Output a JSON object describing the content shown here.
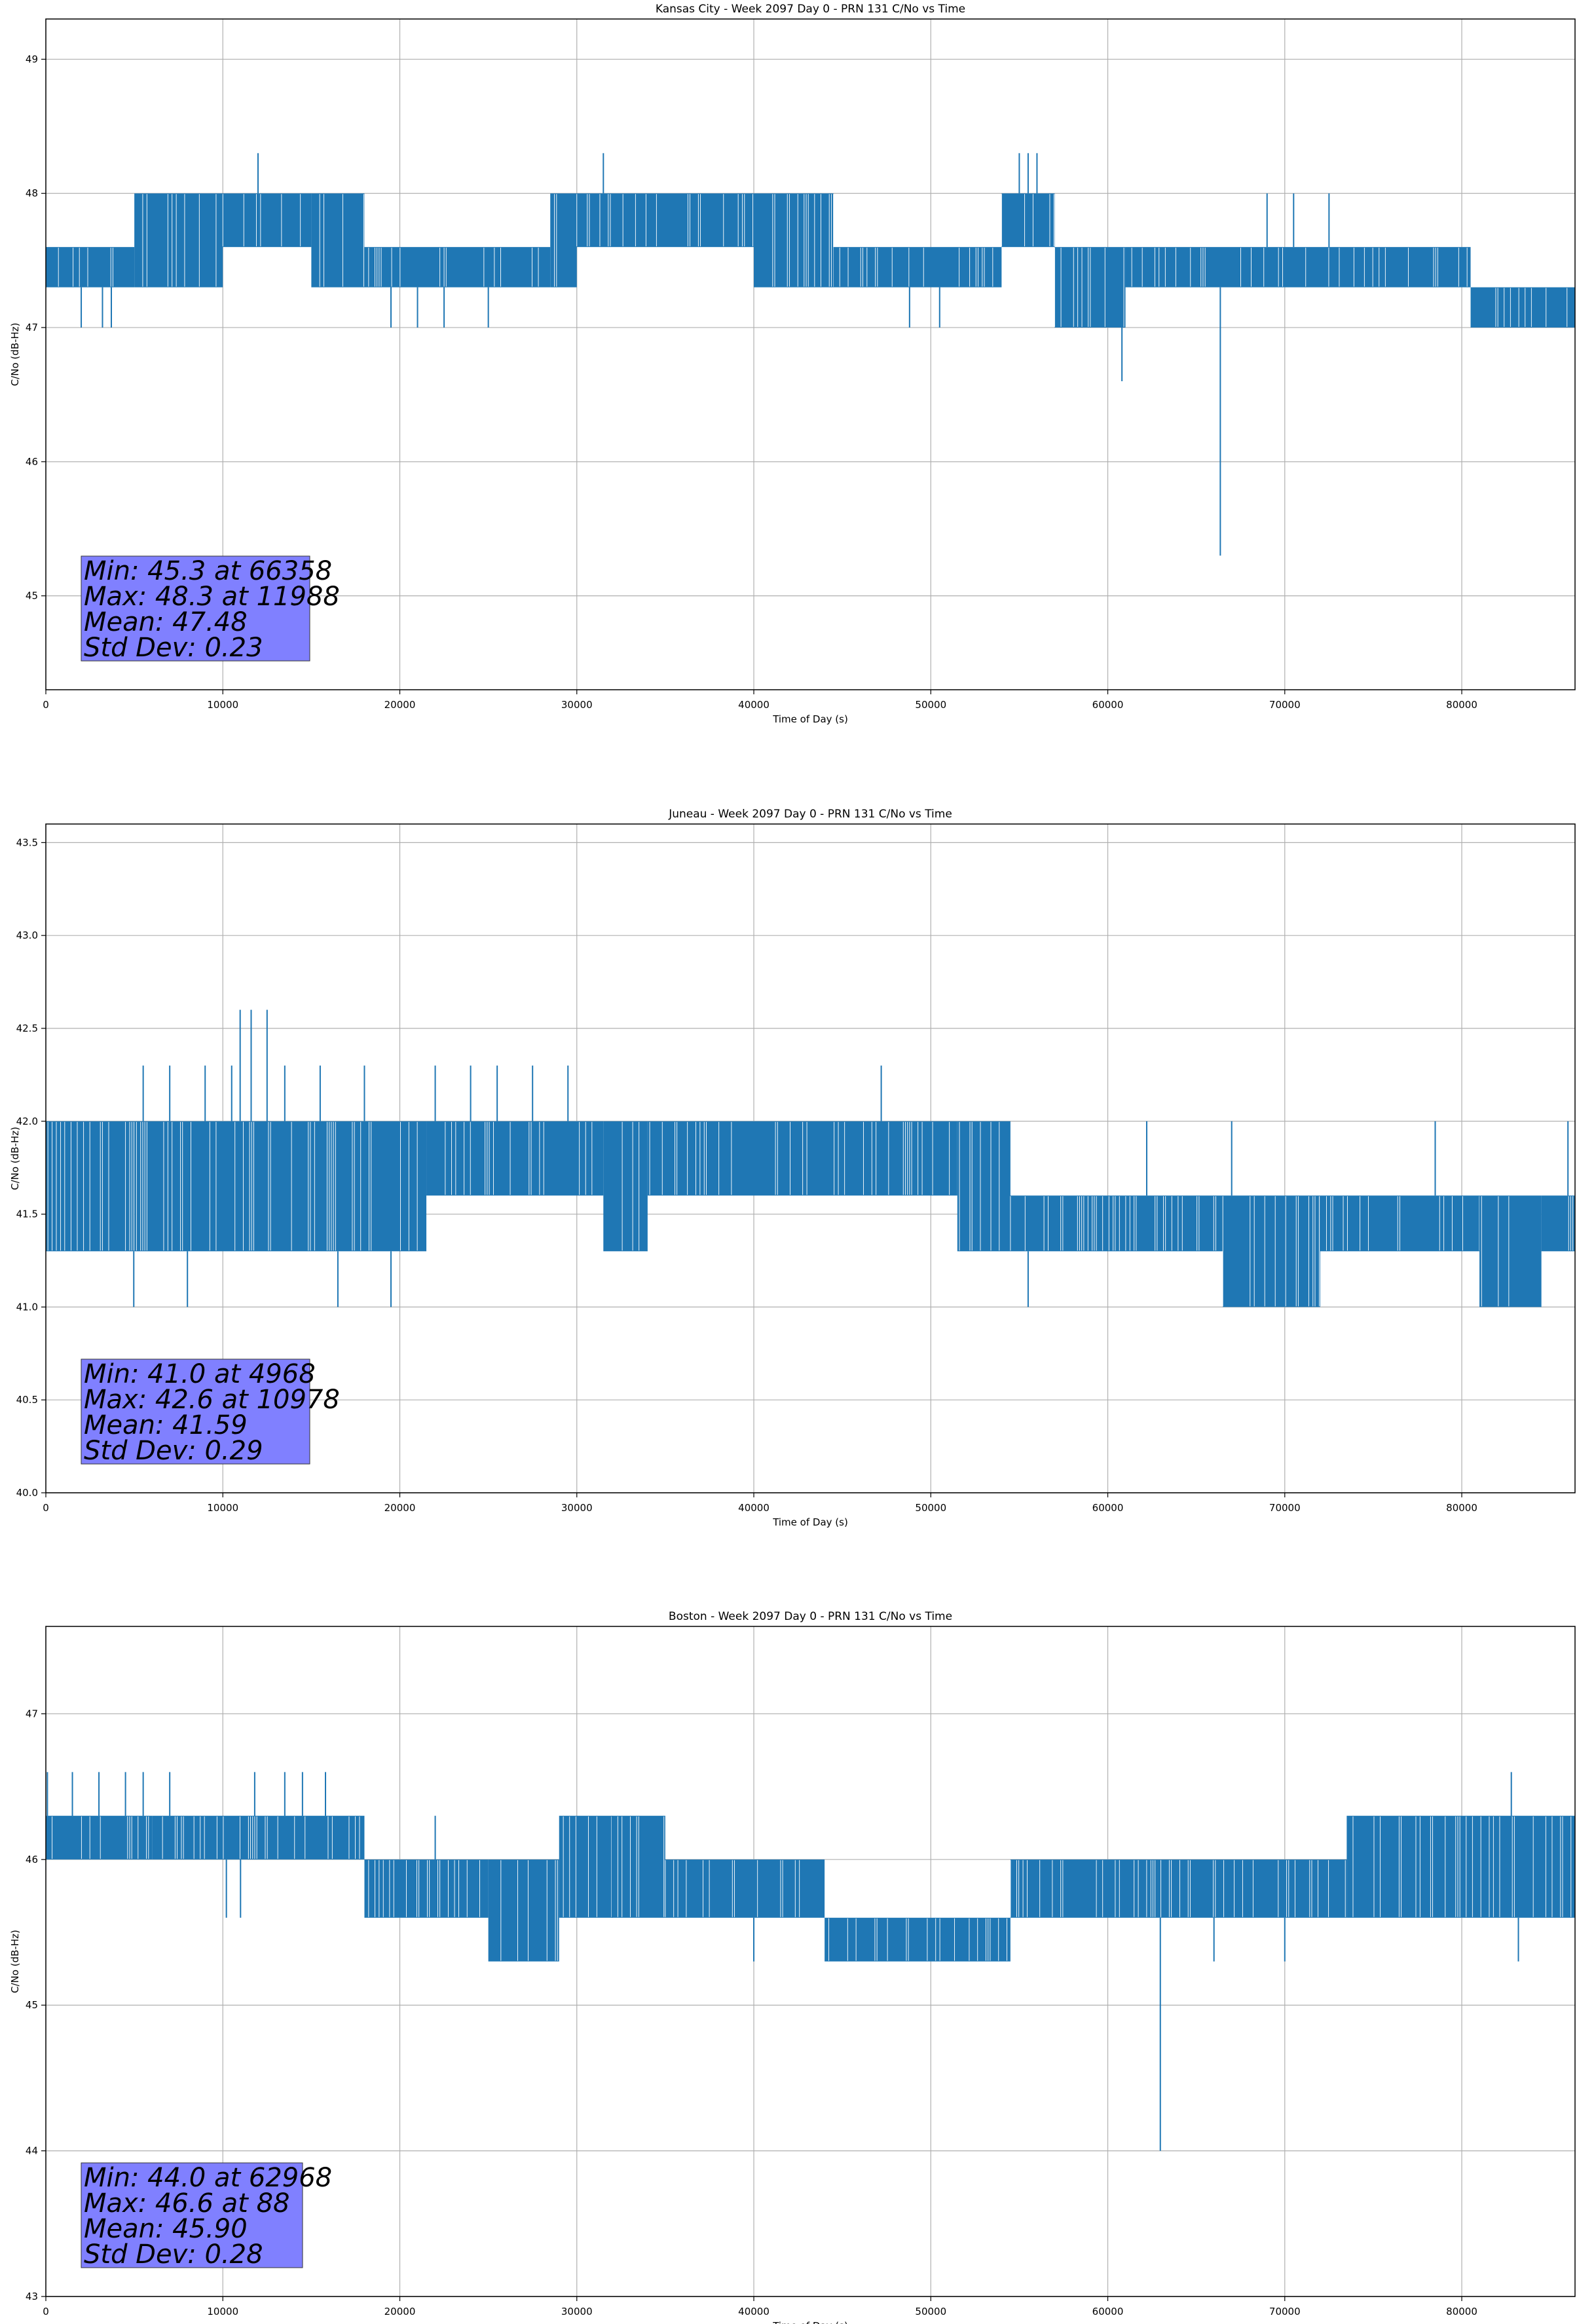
{
  "colors": {
    "series": "#1f77b4",
    "stats_box": "#8080ff",
    "grid": "#b0b0b0"
  },
  "chart_data": [
    {
      "type": "line",
      "title": "Kansas City - Week 2097 Day 0 - PRN 131 C/No vs Time",
      "xlabel": "Time of Day (s)",
      "ylabel": "C/No (dB-Hz)",
      "xlim": [
        0,
        86400
      ],
      "ylim": [
        44.3,
        49.3
      ],
      "xticks": [
        0,
        10000,
        20000,
        30000,
        40000,
        50000,
        60000,
        70000,
        80000
      ],
      "yticks": [
        45,
        46,
        47,
        48,
        49
      ],
      "ytick_labels": [
        "45",
        "46",
        "47",
        "48",
        "49"
      ],
      "grid": true,
      "stats": [
        "Min: 45.3 at 66358",
        "Max: 48.3 at 11988",
        "Mean: 47.48",
        "Std Dev: 0.23"
      ],
      "series": [
        {
          "segments": [
            {
              "x": [
                0,
                5000
              ],
              "lo": 47.3,
              "hi": 47.6
            },
            {
              "x": [
                5000,
                10000
              ],
              "lo": 47.3,
              "hi": 48.0
            },
            {
              "x": [
                10000,
                15000
              ],
              "lo": 47.6,
              "hi": 48.0
            },
            {
              "x": [
                15000,
                18000
              ],
              "lo": 47.3,
              "hi": 48.0
            },
            {
              "x": [
                18000,
                28500
              ],
              "lo": 47.3,
              "hi": 47.6
            },
            {
              "x": [
                28500,
                30000
              ],
              "lo": 47.3,
              "hi": 48.0
            },
            {
              "x": [
                30000,
                40000
              ],
              "lo": 47.6,
              "hi": 48.0
            },
            {
              "x": [
                40000,
                44500
              ],
              "lo": 47.3,
              "hi": 48.0
            },
            {
              "x": [
                44500,
                54000
              ],
              "lo": 47.3,
              "hi": 47.6
            },
            {
              "x": [
                54000,
                57000
              ],
              "lo": 47.6,
              "hi": 48.0
            },
            {
              "x": [
                57000,
                61000
              ],
              "lo": 47.0,
              "hi": 47.6
            },
            {
              "x": [
                61000,
                80500
              ],
              "lo": 47.3,
              "hi": 47.6
            },
            {
              "x": [
                80500,
                86400
              ],
              "lo": 47.0,
              "hi": 47.3
            }
          ],
          "spikes": [
            {
              "x": 2000,
              "y": 47.0
            },
            {
              "x": 3200,
              "y": 47.0
            },
            {
              "x": 3700,
              "y": 47.0
            },
            {
              "x": 11988,
              "y": 48.3
            },
            {
              "x": 19500,
              "y": 47.0
            },
            {
              "x": 21000,
              "y": 47.0
            },
            {
              "x": 22500,
              "y": 47.0
            },
            {
              "x": 25000,
              "y": 47.0
            },
            {
              "x": 31500,
              "y": 48.3
            },
            {
              "x": 48800,
              "y": 47.0
            },
            {
              "x": 50500,
              "y": 47.0
            },
            {
              "x": 55000,
              "y": 48.3
            },
            {
              "x": 55500,
              "y": 48.3
            },
            {
              "x": 56000,
              "y": 48.3
            },
            {
              "x": 60800,
              "y": 46.6
            },
            {
              "x": 66358,
              "y": 45.3
            },
            {
              "x": 69000,
              "y": 48.0
            },
            {
              "x": 70500,
              "y": 48.0
            },
            {
              "x": 72500,
              "y": 48.0
            }
          ]
        }
      ]
    },
    {
      "type": "line",
      "title": "Juneau - Week 2097 Day 0 - PRN 131 C/No vs Time",
      "xlabel": "Time of Day (s)",
      "ylabel": "C/No (dB-Hz)",
      "xlim": [
        0,
        86400
      ],
      "ylim": [
        40.0,
        43.6
      ],
      "xticks": [
        0,
        10000,
        20000,
        30000,
        40000,
        50000,
        60000,
        70000,
        80000
      ],
      "yticks": [
        40.0,
        40.5,
        41.0,
        41.5,
        42.0,
        42.5,
        43.0,
        43.5
      ],
      "ytick_labels": [
        "40.0",
        "40.5",
        "41.0",
        "41.5",
        "42.0",
        "42.5",
        "43.0",
        "43.5"
      ],
      "grid": true,
      "stats": [
        "Min: 41.0 at 4968",
        "Max: 42.6 at 10978",
        "Mean: 41.59",
        "Std Dev: 0.29"
      ],
      "series": [
        {
          "segments": [
            {
              "x": [
                0,
                5000
              ],
              "lo": 41.3,
              "hi": 42.0
            },
            {
              "x": [
                5000,
                21500
              ],
              "lo": 41.3,
              "hi": 42.0
            },
            {
              "x": [
                21500,
                31500
              ],
              "lo": 41.6,
              "hi": 42.0
            },
            {
              "x": [
                31500,
                34000
              ],
              "lo": 41.3,
              "hi": 42.0
            },
            {
              "x": [
                34000,
                51500
              ],
              "lo": 41.6,
              "hi": 42.0
            },
            {
              "x": [
                51500,
                54500
              ],
              "lo": 41.3,
              "hi": 42.0
            },
            {
              "x": [
                54500,
                66500
              ],
              "lo": 41.3,
              "hi": 41.6
            },
            {
              "x": [
                66500,
                72000
              ],
              "lo": 41.0,
              "hi": 41.6
            },
            {
              "x": [
                72000,
                81000
              ],
              "lo": 41.3,
              "hi": 41.6
            },
            {
              "x": [
                81000,
                84500
              ],
              "lo": 41.0,
              "hi": 41.6
            },
            {
              "x": [
                84500,
                86400
              ],
              "lo": 41.3,
              "hi": 41.6
            }
          ],
          "spikes": [
            {
              "x": 4968,
              "y": 41.0
            },
            {
              "x": 5500,
              "y": 42.3
            },
            {
              "x": 7000,
              "y": 42.3
            },
            {
              "x": 8000,
              "y": 41.0
            },
            {
              "x": 9000,
              "y": 42.3
            },
            {
              "x": 10500,
              "y": 42.3
            },
            {
              "x": 10978,
              "y": 42.6
            },
            {
              "x": 11600,
              "y": 42.6
            },
            {
              "x": 12500,
              "y": 42.6
            },
            {
              "x": 13500,
              "y": 42.3
            },
            {
              "x": 15500,
              "y": 42.3
            },
            {
              "x": 16500,
              "y": 41.0
            },
            {
              "x": 18000,
              "y": 42.3
            },
            {
              "x": 19500,
              "y": 41.0
            },
            {
              "x": 22000,
              "y": 42.3
            },
            {
              "x": 24000,
              "y": 42.3
            },
            {
              "x": 25500,
              "y": 42.3
            },
            {
              "x": 27500,
              "y": 42.3
            },
            {
              "x": 29500,
              "y": 42.3
            },
            {
              "x": 47200,
              "y": 42.3
            },
            {
              "x": 55500,
              "y": 41.0
            },
            {
              "x": 62200,
              "y": 42.0
            },
            {
              "x": 67000,
              "y": 42.0
            },
            {
              "x": 78500,
              "y": 42.0
            },
            {
              "x": 86000,
              "y": 42.0
            }
          ]
        }
      ]
    },
    {
      "type": "line",
      "title": "Boston - Week 2097 Day 0 - PRN 131 C/No vs Time",
      "xlabel": "Time of Day (s)",
      "ylabel": "C/No (dB-Hz)",
      "xlim": [
        0,
        86400
      ],
      "ylim": [
        43.0,
        47.6
      ],
      "xticks": [
        0,
        10000,
        20000,
        30000,
        40000,
        50000,
        60000,
        70000,
        80000
      ],
      "yticks": [
        43,
        44,
        45,
        46,
        47
      ],
      "ytick_labels": [
        "43",
        "44",
        "45",
        "46",
        "47"
      ],
      "grid": true,
      "stats": [
        "Min: 44.0 at 62968",
        "Max: 46.6 at 88",
        "Mean: 45.90",
        "Std Dev: 0.28"
      ],
      "series": [
        {
          "segments": [
            {
              "x": [
                0,
                6000
              ],
              "lo": 46.0,
              "hi": 46.3
            },
            {
              "x": [
                6000,
                18000
              ],
              "lo": 46.0,
              "hi": 46.3
            },
            {
              "x": [
                18000,
                25000
              ],
              "lo": 45.6,
              "hi": 46.0
            },
            {
              "x": [
                25000,
                29000
              ],
              "lo": 45.3,
              "hi": 46.0
            },
            {
              "x": [
                29000,
                35000
              ],
              "lo": 45.6,
              "hi": 46.3
            },
            {
              "x": [
                35000,
                44000
              ],
              "lo": 45.6,
              "hi": 46.0
            },
            {
              "x": [
                44000,
                54500
              ],
              "lo": 45.3,
              "hi": 45.6
            },
            {
              "x": [
                54500,
                63000
              ],
              "lo": 45.6,
              "hi": 46.0
            },
            {
              "x": [
                63000,
                73500
              ],
              "lo": 45.6,
              "hi": 46.0
            },
            {
              "x": [
                73500,
                86400
              ],
              "lo": 45.6,
              "hi": 46.3
            }
          ],
          "spikes": [
            {
              "x": 88,
              "y": 46.6
            },
            {
              "x": 1500,
              "y": 46.6
            },
            {
              "x": 3000,
              "y": 46.6
            },
            {
              "x": 4500,
              "y": 46.6
            },
            {
              "x": 5500,
              "y": 46.6
            },
            {
              "x": 7000,
              "y": 46.6
            },
            {
              "x": 10200,
              "y": 45.6
            },
            {
              "x": 11000,
              "y": 45.6
            },
            {
              "x": 11800,
              "y": 46.6
            },
            {
              "x": 13500,
              "y": 46.6
            },
            {
              "x": 14500,
              "y": 46.6
            },
            {
              "x": 15800,
              "y": 46.6
            },
            {
              "x": 22000,
              "y": 46.3
            },
            {
              "x": 32000,
              "y": 46.3
            },
            {
              "x": 40000,
              "y": 45.3
            },
            {
              "x": 62968,
              "y": 44.0
            },
            {
              "x": 66000,
              "y": 45.3
            },
            {
              "x": 70000,
              "y": 45.3
            },
            {
              "x": 82800,
              "y": 46.6
            },
            {
              "x": 83200,
              "y": 45.3
            }
          ]
        }
      ]
    }
  ]
}
